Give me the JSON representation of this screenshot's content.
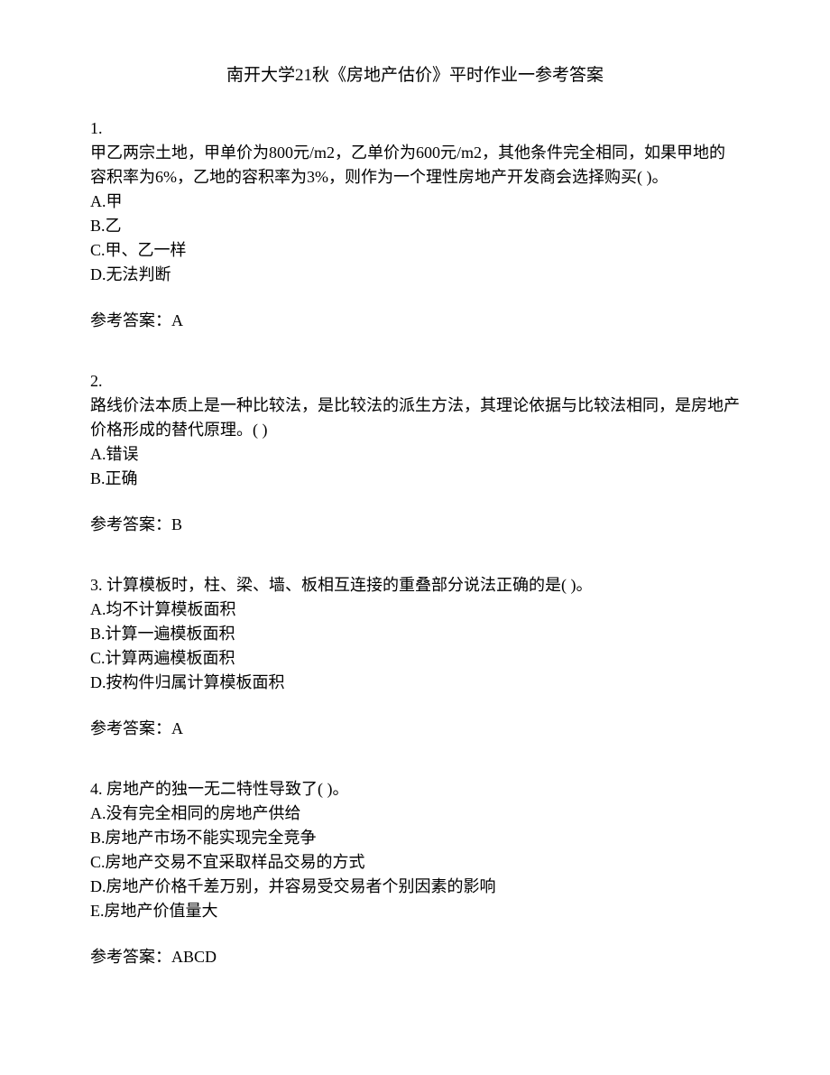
{
  "title": "南开大学21秋《房地产估价》平时作业一参考答案",
  "questions": [
    {
      "num": "1.",
      "text": "甲乙两宗土地，甲单价为800元/m2，乙单价为600元/m2，其他条件完全相同，如果甲地的容积率为6%，乙地的容积率为3%，则作为一个理性房地产开发商会选择购买(    )。",
      "options": [
        "A.甲",
        "B.乙",
        "C.甲、乙一样",
        "D.无法判断"
      ],
      "answerLabel": "参考答案：A"
    },
    {
      "num": "2.",
      "text": "路线价法本质上是一种比较法，是比较法的派生方法，其理论依据与比较法相同，是房地产价格形成的替代原理。(    )",
      "options": [
        "A.错误",
        "B.正确"
      ],
      "answerLabel": "参考答案：B"
    },
    {
      "num": "3.  计算模板时，柱、梁、墙、板相互连接的重叠部分说法正确的是(    )。",
      "text": "",
      "options": [
        "A.均不计算模板面积",
        "B.计算一遍模板面积",
        "C.计算两遍模板面积",
        "D.按构件归属计算模板面积"
      ],
      "answerLabel": "参考答案：A"
    },
    {
      "num": "4.  房地产的独一无二特性导致了(    )。",
      "text": "",
      "options": [
        "A.没有完全相同的房地产供给",
        "B.房地产市场不能实现完全竞争",
        "C.房地产交易不宜采取样品交易的方式",
        "D.房地产价格千差万别，并容易受交易者个别因素的影响",
        "E.房地产价值量大"
      ],
      "answerLabel": "参考答案：ABCD"
    }
  ]
}
